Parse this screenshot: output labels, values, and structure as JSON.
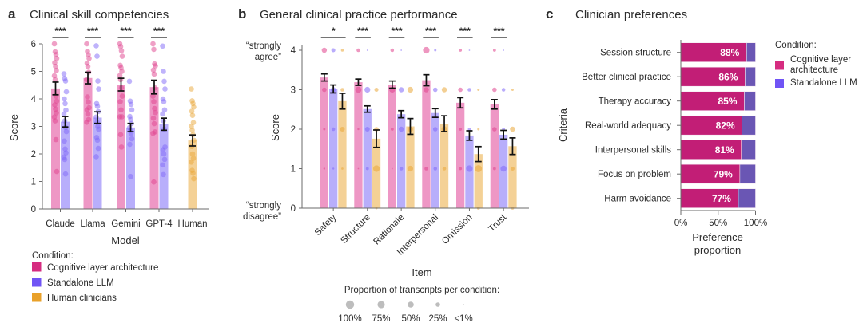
{
  "colors": {
    "cla": "#D62C80",
    "llm": "#7054F5",
    "human": "#E9A12A",
    "cla_bar": "#EE97C5",
    "llm_bar": "#B8AEFB",
    "human_bar": "#F4D196",
    "cla_dot": "#E0418D",
    "llm_dot": "#7F68F7",
    "human_dot": "#EAA73A",
    "cla_dark": "#C21E76",
    "llm_dark": "#6A56B4",
    "axis": "#6b6b6b",
    "error_bar": "#111111",
    "size_legend_dot": "#bdbdbd"
  },
  "chart_data": [
    {
      "panel_letter": "a",
      "type": "bar",
      "title": "Clinical skill competencies",
      "xlabel": "Model",
      "ylabel": "Score",
      "ylim": [
        0,
        6
      ],
      "yticks": [
        "0",
        "1",
        "2",
        "3",
        "4",
        "5",
        "6"
      ],
      "grid": false,
      "categories": [
        "Claude",
        "Llama",
        "Gemini",
        "GPT-4",
        "Human"
      ],
      "significance": [
        "***",
        "***",
        "***",
        "***",
        ""
      ],
      "series": [
        {
          "key": "cla",
          "name": "Cognitive layer architecture",
          "values": [
            4.38,
            4.76,
            4.52,
            4.43,
            null
          ],
          "error": [
            0.23,
            0.21,
            0.23,
            0.25,
            null
          ],
          "points": [
            [
              6.0,
              5.71,
              5.61,
              5.47,
              5.32,
              5.18,
              5.03,
              4.84,
              4.7,
              4.1,
              3.92,
              3.78,
              3.63,
              3.49,
              3.34,
              3.2,
              2.52,
              1.36
            ],
            [
              6.0,
              5.73,
              5.6,
              5.47,
              5.3,
              5.18,
              4.97,
              4.7,
              4.07,
              3.88,
              3.68,
              3.6,
              3.45,
              3.25,
              3.15
            ],
            [
              6.0,
              5.9,
              5.75,
              5.55,
              5.22,
              5.13,
              5.0,
              4.85,
              4.7,
              4.4,
              4.1,
              3.9,
              3.6,
              3.35,
              3.35,
              2.7,
              2.25
            ],
            [
              6.0,
              5.8,
              5.27,
              5.2,
              5.05,
              4.9,
              4.4,
              4.1,
              3.9,
              3.65,
              3.5,
              3.3,
              3.1,
              2.8,
              2.75,
              0.98
            ],
            null
          ]
        },
        {
          "key": "llm",
          "name": "Standalone LLM",
          "values": [
            3.17,
            3.32,
            2.96,
            3.08,
            null
          ],
          "error": [
            0.19,
            0.21,
            0.15,
            0.22,
            null
          ],
          "points": [
            [
              4.91,
              4.74,
              4.65,
              4.26,
              4.0,
              3.83,
              3.59,
              3.45,
              3.2,
              2.96,
              2.81,
              2.47,
              2.18,
              2.04,
              1.89,
              1.8,
              1.27
            ],
            [
              5.93,
              5.55,
              4.65,
              4.36,
              3.83,
              3.73,
              3.54,
              3.34,
              3.15,
              3.0,
              2.9,
              2.6,
              2.5,
              2.2,
              1.9
            ],
            [
              4.64,
              3.92,
              3.8,
              3.6,
              3.36,
              3.25,
              3.1,
              2.95,
              2.85,
              2.75,
              2.55,
              2.35,
              1.18
            ],
            [
              5.92,
              5.0,
              4.64,
              4.36,
              4.0,
              3.9,
              3.6,
              3.45,
              3.2,
              2.9,
              2.25,
              2.15,
              2.0,
              1.8,
              1.6,
              1.25
            ],
            null
          ]
        },
        {
          "key": "human",
          "name": "Human clinicians",
          "values": [
            null,
            null,
            null,
            null,
            2.49
          ],
          "error": [
            null,
            null,
            null,
            null,
            0.2
          ],
          "points": [
            null,
            null,
            null,
            null,
            [
              4.36,
              3.93,
              3.83,
              3.7,
              3.55,
              3.4,
              3.14,
              3.0,
              2.86,
              2.7,
              2.5,
              2.27,
              2.0,
              1.84,
              1.7,
              1.4,
              1.3,
              1.1
            ]
          ]
        }
      ],
      "legend": {
        "title": "Condition:",
        "placement": "bottom-left",
        "entries": [
          {
            "key": "cla",
            "label": "Cognitive layer architecture"
          },
          {
            "key": "llm",
            "label": "Standalone LLM"
          },
          {
            "key": "human",
            "label": "Human clinicians"
          }
        ]
      }
    },
    {
      "panel_letter": "b",
      "type": "bar",
      "title": "General clinical practice performance",
      "xlabel": "Item",
      "ylabel": "Score",
      "ylim": [
        0,
        4
      ],
      "yticks": [
        "0",
        "1",
        "2",
        "3",
        "4"
      ],
      "y_anchor_labels": {
        "top": [
          "“strongly",
          "agree”"
        ],
        "bottom": [
          "“strongly",
          "disagree”"
        ]
      },
      "grid": false,
      "categories": [
        "Safety",
        "Structure",
        "Rationale",
        "Interpersonal",
        "Omission",
        "Trust"
      ],
      "significance": [
        {
          "label": "*",
          "between": [
            "cla",
            "human"
          ]
        },
        {
          "label": "***",
          "between": [
            "cla",
            "llm"
          ]
        },
        {
          "label": "***",
          "between": [
            "cla",
            "llm"
          ]
        },
        {
          "label": "***",
          "between": [
            "cla",
            "llm"
          ]
        },
        {
          "label": "***",
          "between": [
            "cla",
            "llm"
          ]
        },
        {
          "label": "***",
          "between": [
            "cla",
            "llm"
          ]
        }
      ],
      "series": [
        {
          "key": "cla",
          "name": "Cognitive layer architecture",
          "values": [
            3.31,
            3.19,
            3.13,
            3.24,
            2.67,
            2.63
          ],
          "error": [
            0.09,
            0.08,
            0.09,
            0.14,
            0.13,
            0.12
          ]
        },
        {
          "key": "llm",
          "name": "Standalone LLM",
          "values": [
            3.02,
            2.51,
            2.38,
            2.41,
            1.84,
            1.86
          ],
          "error": [
            0.1,
            0.08,
            0.09,
            0.11,
            0.12,
            0.11
          ]
        },
        {
          "key": "human",
          "name": "Human clinicians",
          "values": [
            2.71,
            1.76,
            2.07,
            2.14,
            1.37,
            1.57
          ],
          "error": [
            0.2,
            0.22,
            0.2,
            0.2,
            0.19,
            0.21
          ]
        }
      ],
      "score_levels": [
        0,
        1,
        2,
        3,
        4
      ],
      "proportions": [
        {
          "cla": [
            0,
            0.03,
            0.05,
            0.25,
            0.35
          ],
          "llm": [
            0,
            0.03,
            0.15,
            0.35,
            0.2
          ],
          "human": [
            0,
            0.04,
            0.3,
            0.15,
            0.08
          ]
        },
        {
          "cla": [
            0,
            0.01,
            0.03,
            0.5,
            0.15
          ],
          "llm": [
            0,
            0.1,
            0.3,
            0.45,
            0.01
          ],
          "human": [
            0.05,
            0.6,
            0.25,
            0.2,
            0
          ]
        },
        {
          "cla": [
            0,
            0.01,
            0.1,
            0.45,
            0.15
          ],
          "llm": [
            0,
            0.15,
            0.35,
            0.35,
            0.01
          ],
          "human": [
            0,
            0.45,
            0.4,
            0.45,
            0
          ]
        },
        {
          "cla": [
            0,
            0.15,
            0,
            0.35,
            0.6
          ],
          "llm": [
            0,
            0.15,
            0.25,
            0.25,
            0.05
          ],
          "human": [
            0,
            0.15,
            0.45,
            0.35,
            0
          ]
        },
        {
          "cla": [
            0,
            0.1,
            0.1,
            0.25,
            0.1
          ],
          "llm": [
            0,
            0.6,
            0.1,
            0.15,
            0.01
          ],
          "human": [
            0.1,
            0.7,
            0.05,
            0.05,
            0
          ]
        },
        {
          "cla": [
            0,
            0.1,
            0.25,
            0.25,
            0.1
          ],
          "llm": [
            0,
            0.5,
            0.1,
            0.15,
            0.01
          ],
          "human": [
            0.1,
            0.2,
            0.35,
            0.05,
            0
          ]
        }
      ],
      "size_legend": {
        "title": "Proportion of transcripts per condition:",
        "entries": [
          {
            "label": "100%",
            "proportion": 1.0
          },
          {
            "label": "75%",
            "proportion": 0.75
          },
          {
            "label": "50%",
            "proportion": 0.5
          },
          {
            "label": "25%",
            "proportion": 0.25
          },
          {
            "label": "<1%",
            "proportion": 0.005
          }
        ]
      }
    },
    {
      "panel_letter": "c",
      "type": "bar",
      "orientation": "horizontal-stacked",
      "title": "Clinician preferences",
      "xlabel_lines": [
        "Preference",
        "proportion"
      ],
      "ylabel": "Criteria",
      "xlim": [
        0,
        100
      ],
      "xticks": [
        "0%",
        "50%",
        "100%"
      ],
      "categories": [
        "Session structure",
        "Better clinical practice",
        "Therapy accuracy",
        "Real-world adequacy",
        "Interpersonal skills",
        "Focus on problem",
        "Harm avoidance"
      ],
      "series": [
        {
          "key": "cla",
          "name": "Cognitive layer architecture",
          "values": [
            88,
            86,
            85,
            82,
            81,
            79,
            77
          ],
          "data_labels": [
            "88%",
            "86%",
            "85%",
            "82%",
            "81%",
            "79%",
            "77%"
          ]
        },
        {
          "key": "llm",
          "name": "Standalone LLM",
          "values": [
            12,
            14,
            15,
            18,
            19,
            21,
            23
          ]
        }
      ],
      "legend": {
        "title": "Condition:",
        "placement": "top-right",
        "entries": [
          {
            "key": "cla",
            "lines": [
              "Cognitive layer",
              "architecture"
            ]
          },
          {
            "key": "llm",
            "lines": [
              "Standalone LLM"
            ]
          }
        ]
      }
    }
  ]
}
